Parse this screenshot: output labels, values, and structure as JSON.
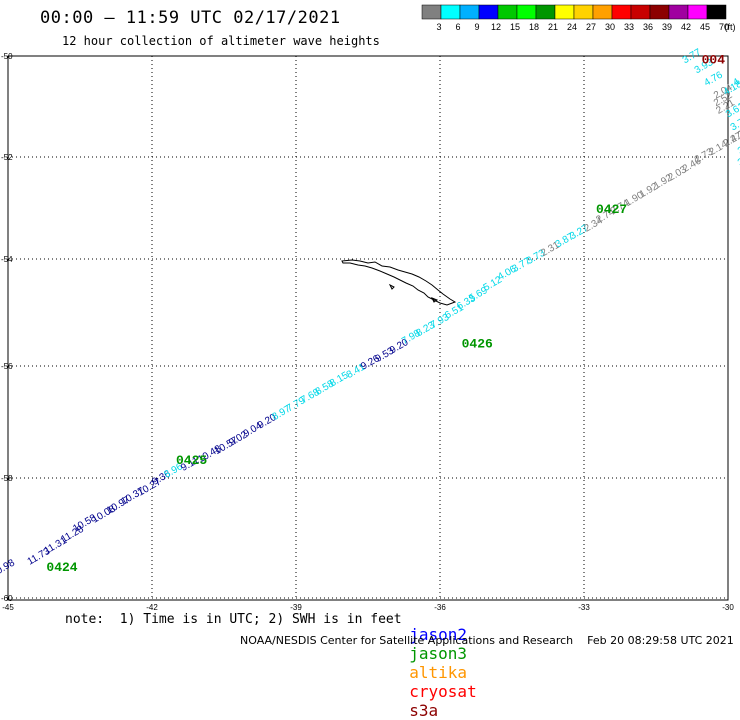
{
  "header": {
    "title": "00:00 – 11:59 UTC 02/17/2021",
    "subtitle": "12 hour collection of altimeter wave heights"
  },
  "colorbar": {
    "colors": [
      "#808080",
      "#00ffff",
      "#00b0ff",
      "#0000ff",
      "#00c800",
      "#00ff00",
      "#009600",
      "#ffff00",
      "#ffd200",
      "#ffa000",
      "#ff0000",
      "#c80000",
      "#8c0000",
      "#a000a0",
      "#ff00ff",
      "#000000"
    ],
    "labels": [
      "3",
      "6",
      "9",
      "12",
      "15",
      "18",
      "21",
      "24",
      "27",
      "30",
      "33",
      "36",
      "39",
      "42",
      "45",
      "70",
      "(ft)"
    ]
  },
  "axes": {
    "lon_ticks": [
      "-45",
      "-42",
      "-39",
      "-36",
      "-33",
      "-30"
    ],
    "lat_ticks": [
      "-50",
      "-52",
      "-54",
      "-56",
      "-58",
      "-60"
    ]
  },
  "chart_data": {
    "type": "scatter",
    "x_label": "",
    "y_label": "",
    "xlim": [
      -45,
      -30
    ],
    "ylim": [
      -60,
      -50
    ],
    "color_key": {
      "gray": "#808080",
      "cyan": "#00d8e8",
      "navy": "#00008c"
    },
    "tracks": [
      {
        "label": "0424",
        "label_lon": -44.2,
        "label_lat": -59.55
      },
      {
        "label": "0425",
        "label_lon": -41.5,
        "label_lat": -57.75
      },
      {
        "label": "0426",
        "label_lon": -35.55,
        "label_lat": -55.65
      },
      {
        "label": "0427",
        "label_lon": -32.75,
        "label_lat": -53.1
      },
      {
        "label": "004",
        "label_lon": -30.55,
        "label_lat": -50.15
      }
    ],
    "points": [
      {
        "lon": -45.3,
        "lat": -59.65,
        "v": "10.98",
        "c": "navy"
      },
      {
        "lon": -44.55,
        "lat": -59.45,
        "v": "11.73",
        "c": "navy"
      },
      {
        "lon": -44.2,
        "lat": -59.27,
        "v": "11.31",
        "c": "navy"
      },
      {
        "lon": -43.85,
        "lat": -59.08,
        "v": "11.28",
        "c": "navy"
      },
      {
        "lon": -43.6,
        "lat": -58.9,
        "v": "10.58",
        "c": "navy"
      },
      {
        "lon": -43.2,
        "lat": -58.75,
        "v": "10.08",
        "c": "navy"
      },
      {
        "lon": -42.9,
        "lat": -58.6,
        "v": "10.97",
        "c": "navy"
      },
      {
        "lon": -42.6,
        "lat": -58.45,
        "v": "10.37",
        "c": "navy"
      },
      {
        "lon": -42.25,
        "lat": -58.3,
        "v": "10.27",
        "c": "navy"
      },
      {
        "lon": -41.95,
        "lat": -58.12,
        "v": "9.36",
        "c": "navy"
      },
      {
        "lon": -41.7,
        "lat": -58.0,
        "v": "8.96",
        "c": "cyan"
      },
      {
        "lon": -41.35,
        "lat": -57.88,
        "v": "9.11",
        "c": "navy"
      },
      {
        "lon": -41.0,
        "lat": -57.73,
        "v": "10.48",
        "c": "navy"
      },
      {
        "lon": -40.65,
        "lat": -57.58,
        "v": "10.57",
        "c": "navy"
      },
      {
        "lon": -40.35,
        "lat": -57.43,
        "v": "9.02",
        "c": "navy"
      },
      {
        "lon": -40.05,
        "lat": -57.27,
        "v": "9.04",
        "c": "navy"
      },
      {
        "lon": -39.75,
        "lat": -57.12,
        "v": "9.20",
        "c": "navy"
      },
      {
        "lon": -39.45,
        "lat": -56.97,
        "v": "8.97",
        "c": "cyan"
      },
      {
        "lon": -39.15,
        "lat": -56.82,
        "v": "7.79",
        "c": "cyan"
      },
      {
        "lon": -38.85,
        "lat": -56.67,
        "v": "7.68",
        "c": "cyan"
      },
      {
        "lon": -38.55,
        "lat": -56.52,
        "v": "8.58",
        "c": "cyan"
      },
      {
        "lon": -38.25,
        "lat": -56.37,
        "v": "8.15",
        "c": "cyan"
      },
      {
        "lon": -37.9,
        "lat": -56.22,
        "v": "8.41",
        "c": "cyan"
      },
      {
        "lon": -37.6,
        "lat": -56.07,
        "v": "9.26",
        "c": "navy"
      },
      {
        "lon": -37.3,
        "lat": -55.93,
        "v": "9.53",
        "c": "navy"
      },
      {
        "lon": -37.0,
        "lat": -55.77,
        "v": "9.20",
        "c": "navy"
      },
      {
        "lon": -36.75,
        "lat": -55.6,
        "v": "7.98",
        "c": "cyan"
      },
      {
        "lon": -36.45,
        "lat": -55.45,
        "v": "8.23",
        "c": "cyan"
      },
      {
        "lon": -36.15,
        "lat": -55.3,
        "v": "7.93",
        "c": "cyan"
      },
      {
        "lon": -35.85,
        "lat": -55.12,
        "v": "6.51",
        "c": "cyan"
      },
      {
        "lon": -35.6,
        "lat": -54.95,
        "v": "6.33",
        "c": "cyan"
      },
      {
        "lon": -35.35,
        "lat": -54.8,
        "v": "5.69",
        "c": "cyan"
      },
      {
        "lon": -35.05,
        "lat": -54.6,
        "v": "5.12",
        "c": "cyan"
      },
      {
        "lon": -34.75,
        "lat": -54.4,
        "v": "4.06",
        "c": "cyan"
      },
      {
        "lon": -34.45,
        "lat": -54.25,
        "v": "3.77",
        "c": "cyan"
      },
      {
        "lon": -34.15,
        "lat": -54.1,
        "v": "3.73",
        "c": "cyan"
      },
      {
        "lon": -33.85,
        "lat": -53.95,
        "v": "2.31",
        "c": "gray"
      },
      {
        "lon": -33.55,
        "lat": -53.78,
        "v": "3.87",
        "c": "cyan"
      },
      {
        "lon": -33.25,
        "lat": -53.62,
        "v": "3.27",
        "c": "cyan"
      },
      {
        "lon": -32.95,
        "lat": -53.47,
        "v": "2.34",
        "c": "gray"
      },
      {
        "lon": -32.7,
        "lat": -53.3,
        "v": "2.74",
        "c": "gray"
      },
      {
        "lon": -32.4,
        "lat": -53.13,
        "v": "2.74",
        "c": "gray"
      },
      {
        "lon": -32.1,
        "lat": -52.97,
        "v": "1.90",
        "c": "gray"
      },
      {
        "lon": -31.8,
        "lat": -52.8,
        "v": "1.92",
        "c": "gray"
      },
      {
        "lon": -31.5,
        "lat": -52.63,
        "v": "1.92",
        "c": "gray"
      },
      {
        "lon": -31.2,
        "lat": -52.47,
        "v": "2.03",
        "c": "gray"
      },
      {
        "lon": -30.9,
        "lat": -52.3,
        "v": "2.46",
        "c": "gray"
      },
      {
        "lon": -30.65,
        "lat": -52.12,
        "v": "2.73",
        "c": "gray"
      },
      {
        "lon": -30.35,
        "lat": -51.97,
        "v": "2.14",
        "c": "gray"
      },
      {
        "lon": -30.05,
        "lat": -51.8,
        "v": "2.47",
        "c": "gray"
      },
      {
        "lon": -29.75,
        "lat": -51.63,
        "v": "2.21",
        "c": "gray"
      },
      {
        "lon": -29.45,
        "lat": -51.47,
        "v": "0.59",
        "c": "gray"
      },
      {
        "lon": -29.2,
        "lat": -51.3,
        "v": "2.63",
        "c": "gray"
      },
      {
        "lon": -30.2,
        "lat": -51.15,
        "v": "2.21",
        "c": "gray"
      },
      {
        "lon": -30.25,
        "lat": -51.0,
        "v": "2.52",
        "c": "gray"
      },
      {
        "lon": -30.25,
        "lat": -50.85,
        "v": "2.04",
        "c": "gray"
      },
      {
        "lon": -30.9,
        "lat": -50.15,
        "v": "3.77",
        "c": "cyan"
      },
      {
        "lon": -30.65,
        "lat": -50.35,
        "v": "3.93",
        "c": "cyan"
      },
      {
        "lon": -30.45,
        "lat": -50.6,
        "v": "4.76",
        "c": "cyan"
      },
      {
        "lon": -30.05,
        "lat": -50.78,
        "v": "4.18",
        "c": "cyan"
      },
      {
        "lon": -29.85,
        "lat": -50.6,
        "v": "4.6",
        "c": "cyan"
      },
      {
        "lon": -30.0,
        "lat": -51.22,
        "v": "3.61",
        "c": "cyan"
      },
      {
        "lon": -29.9,
        "lat": -51.48,
        "v": "3.79",
        "c": "cyan"
      },
      {
        "lon": -29.9,
        "lat": -51.72,
        "v": "2.27",
        "c": "gray"
      },
      {
        "lon": -29.75,
        "lat": -51.95,
        "v": "3.16",
        "c": "cyan"
      },
      {
        "lon": -29.75,
        "lat": -52.18,
        "v": "3.01",
        "c": "cyan"
      },
      {
        "lon": -29.65,
        "lat": -52.42,
        "v": "3.1",
        "c": "cyan"
      }
    ]
  },
  "footer": {
    "notes": "note:  1) Time is in UTC; 2) SWH is in feet",
    "satellites": [
      {
        "name": "jason2",
        "color": "#0000ff"
      },
      {
        "name": "jason3",
        "color": "#009600"
      },
      {
        "name": "altika",
        "color": "#ff9600"
      },
      {
        "name": "cryosat",
        "color": "#ff0000"
      },
      {
        "name": "s3a",
        "color": "#8c0000"
      }
    ],
    "credit": "NOAA/NESDIS Center for Satellite Applications and Research    Feb 20 08:29:58 UTC 2021"
  }
}
